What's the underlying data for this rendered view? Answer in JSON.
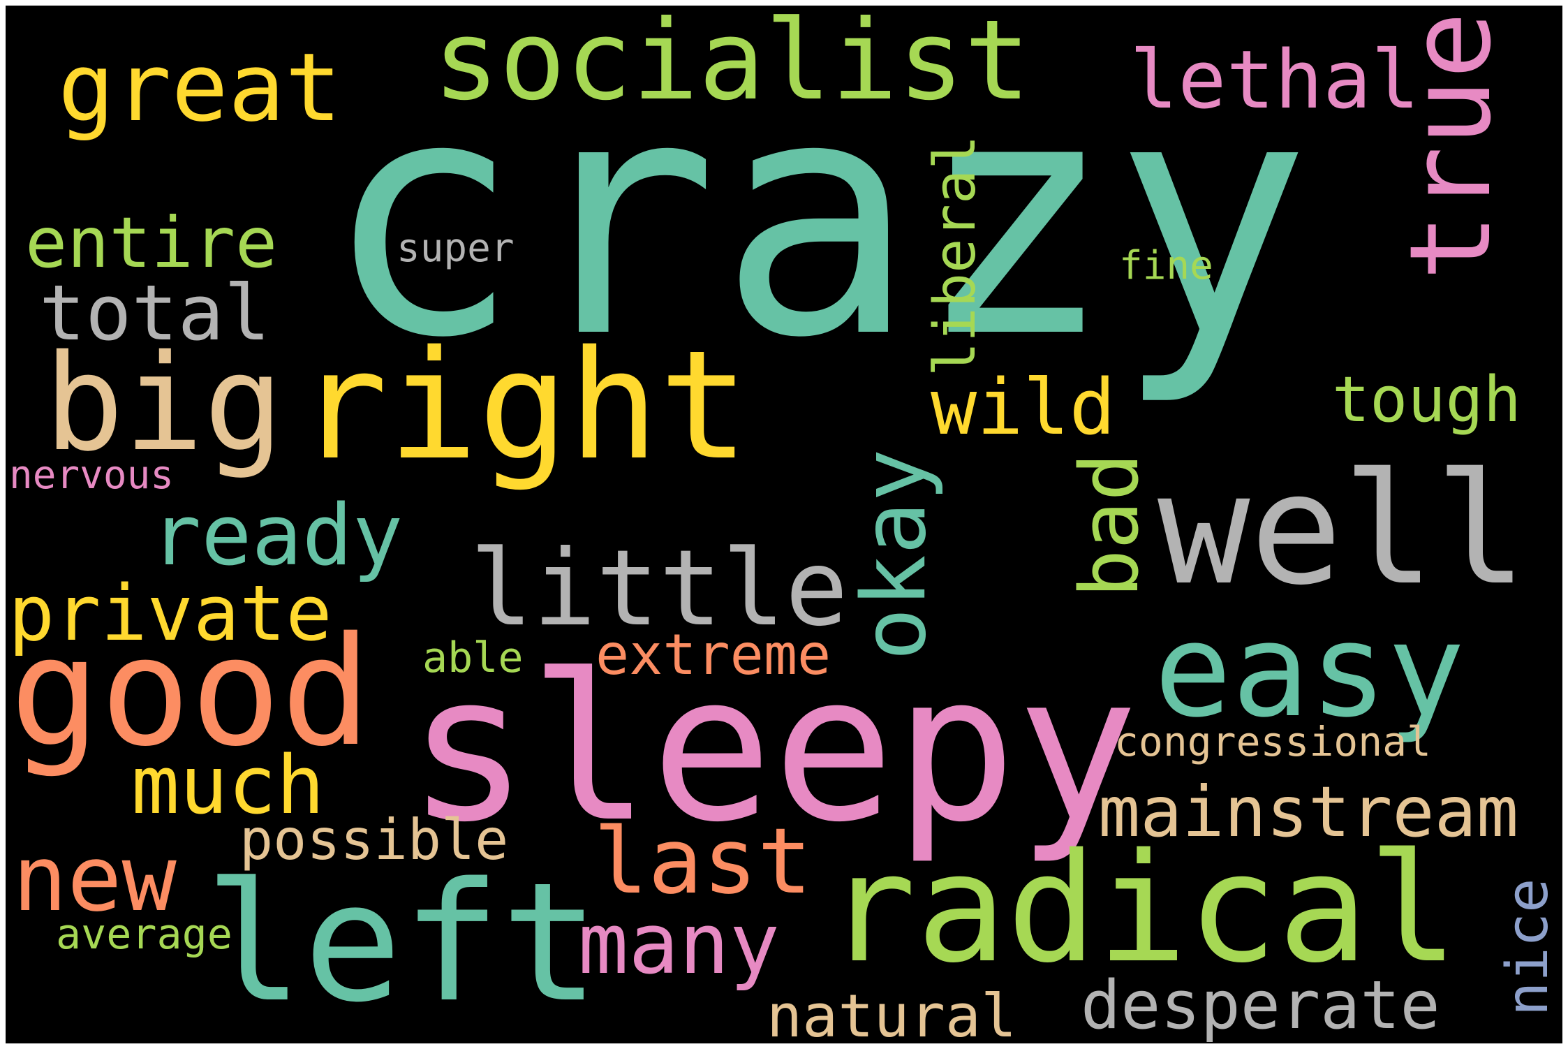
{
  "colors": {
    "background": "#000000",
    "teal": "#66c2a5",
    "orange": "#fc8d62",
    "blue": "#8da0cb",
    "pink": "#e78ac3",
    "green": "#a6d854",
    "yellow": "#ffd92f",
    "tan": "#e5c494",
    "gray": "#b3b3b3"
  },
  "words": [
    {
      "text": "crazy",
      "color": "#66c2a5",
      "vertical": false
    },
    {
      "text": "socialist",
      "color": "#a6d854",
      "vertical": false
    },
    {
      "text": "great",
      "color": "#ffd92f",
      "vertical": false
    },
    {
      "text": "lethal",
      "color": "#e78ac3",
      "vertical": false
    },
    {
      "text": "true",
      "color": "#e78ac3",
      "vertical": true
    },
    {
      "text": "entire",
      "color": "#a6d854",
      "vertical": false
    },
    {
      "text": "super",
      "color": "#b3b3b3",
      "vertical": false
    },
    {
      "text": "fine",
      "color": "#a6d854",
      "vertical": false
    },
    {
      "text": "liberal",
      "color": "#a6d854",
      "vertical": true
    },
    {
      "text": "total",
      "color": "#b3b3b3",
      "vertical": false
    },
    {
      "text": "big",
      "color": "#e5c494",
      "vertical": false
    },
    {
      "text": "right",
      "color": "#ffd92f",
      "vertical": false
    },
    {
      "text": "wild",
      "color": "#ffd92f",
      "vertical": false
    },
    {
      "text": "tough",
      "color": "#a6d854",
      "vertical": false
    },
    {
      "text": "nervous",
      "color": "#e78ac3",
      "vertical": false
    },
    {
      "text": "okay",
      "color": "#66c2a5",
      "vertical": true
    },
    {
      "text": "bad",
      "color": "#a6d854",
      "vertical": true
    },
    {
      "text": "well",
      "color": "#b3b3b3",
      "vertical": false
    },
    {
      "text": "ready",
      "color": "#66c2a5",
      "vertical": false
    },
    {
      "text": "private",
      "color": "#ffd92f",
      "vertical": false
    },
    {
      "text": "little",
      "color": "#b3b3b3",
      "vertical": false
    },
    {
      "text": "good",
      "color": "#fc8d62",
      "vertical": false
    },
    {
      "text": "extreme",
      "color": "#fc8d62",
      "vertical": false
    },
    {
      "text": "able",
      "color": "#a6d854",
      "vertical": false
    },
    {
      "text": "easy",
      "color": "#66c2a5",
      "vertical": false
    },
    {
      "text": "sleepy",
      "color": "#e78ac3",
      "vertical": false
    },
    {
      "text": "congressional",
      "color": "#e5c494",
      "vertical": false
    },
    {
      "text": "much",
      "color": "#ffd92f",
      "vertical": false
    },
    {
      "text": "mainstream",
      "color": "#e5c494",
      "vertical": false
    },
    {
      "text": "possible",
      "color": "#e5c494",
      "vertical": false
    },
    {
      "text": "last",
      "color": "#fc8d62",
      "vertical": false
    },
    {
      "text": "new",
      "color": "#fc8d62",
      "vertical": false
    },
    {
      "text": "left",
      "color": "#66c2a5",
      "vertical": false
    },
    {
      "text": "radical",
      "color": "#a6d854",
      "vertical": false
    },
    {
      "text": "many",
      "color": "#e78ac3",
      "vertical": false
    },
    {
      "text": "average",
      "color": "#a6d854",
      "vertical": false
    },
    {
      "text": "nice",
      "color": "#8da0cb",
      "vertical": true
    },
    {
      "text": "desperate",
      "color": "#b3b3b3",
      "vertical": false
    },
    {
      "text": "natural",
      "color": "#e5c494",
      "vertical": false
    }
  ]
}
